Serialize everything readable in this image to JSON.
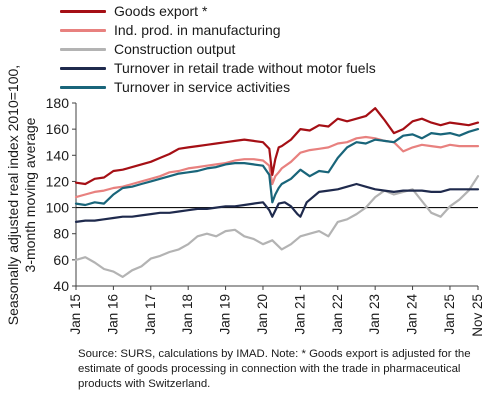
{
  "chart_data": {
    "type": "line",
    "ylabel": "Seasonally adjusted real index 2010=100, 3-month moving average",
    "ylim": [
      40,
      180
    ],
    "yticks": [
      40,
      60,
      80,
      100,
      120,
      140,
      160,
      180
    ],
    "xlim": [
      2015.0,
      2025.75
    ],
    "xtick_labels": [
      "Jan 15",
      "Jan 16",
      "Jan 17",
      "Jan 18",
      "Jan 19",
      "Jan 20",
      "Jan 21",
      "Jan 22",
      "Jan 23",
      "Jan 24",
      "Jan 25",
      "Nov 25"
    ],
    "reference_line": 100,
    "grid": false,
    "legend_position": "top",
    "series": [
      {
        "name": "Goods export *",
        "color": "#a50f15",
        "x": [
          2015.0,
          2015.25,
          2015.5,
          2015.75,
          2016.0,
          2016.25,
          2016.5,
          2016.75,
          2017.0,
          2017.25,
          2017.5,
          2017.75,
          2018.0,
          2018.25,
          2018.5,
          2018.75,
          2019.0,
          2019.25,
          2019.5,
          2019.75,
          2020.0,
          2020.17,
          2020.25,
          2020.33,
          2020.42,
          2020.5,
          2020.75,
          2021.0,
          2021.25,
          2021.5,
          2021.75,
          2022.0,
          2022.25,
          2022.5,
          2022.75,
          2023.0,
          2023.25,
          2023.5,
          2023.75,
          2024.0,
          2024.25,
          2024.5,
          2024.75,
          2025.0,
          2025.25,
          2025.5,
          2025.75
        ],
        "y": [
          119,
          118,
          122,
          123,
          128,
          129,
          131,
          133,
          135,
          138,
          141,
          145,
          146,
          147,
          148,
          149,
          150,
          151,
          152,
          151,
          150,
          145,
          125,
          137,
          146,
          147,
          152,
          160,
          159,
          163,
          162,
          168,
          166,
          168,
          170,
          176,
          167,
          157,
          160,
          166,
          168,
          165,
          163,
          165,
          164,
          163,
          165
        ]
      },
      {
        "name": "Ind. prod. in manufacturing",
        "color": "#e8817f",
        "x": [
          2015.0,
          2015.25,
          2015.5,
          2015.75,
          2016.0,
          2016.25,
          2016.5,
          2016.75,
          2017.0,
          2017.25,
          2017.5,
          2017.75,
          2018.0,
          2018.25,
          2018.5,
          2018.75,
          2019.0,
          2019.25,
          2019.5,
          2019.75,
          2020.0,
          2020.17,
          2020.25,
          2020.33,
          2020.42,
          2020.5,
          2020.75,
          2021.0,
          2021.25,
          2021.5,
          2021.75,
          2022.0,
          2022.25,
          2022.5,
          2022.75,
          2023.0,
          2023.25,
          2023.5,
          2023.75,
          2024.0,
          2024.25,
          2024.5,
          2024.75,
          2025.0,
          2025.25,
          2025.5,
          2025.75
        ],
        "y": [
          108,
          110,
          112,
          113,
          115,
          116,
          118,
          120,
          122,
          124,
          127,
          128,
          130,
          131,
          132,
          133,
          134,
          136,
          137,
          137,
          136,
          132,
          118,
          124,
          127,
          130,
          135,
          142,
          144,
          145,
          146,
          149,
          150,
          153,
          154,
          153,
          151,
          150,
          143,
          146,
          148,
          147,
          146,
          148,
          147,
          147,
          147
        ]
      },
      {
        "name": "Construction output",
        "color": "#b3b3b3",
        "x": [
          2015.0,
          2015.25,
          2015.5,
          2015.75,
          2016.0,
          2016.25,
          2016.5,
          2016.75,
          2017.0,
          2017.25,
          2017.5,
          2017.75,
          2018.0,
          2018.25,
          2018.5,
          2018.75,
          2019.0,
          2019.25,
          2019.5,
          2019.75,
          2020.0,
          2020.25,
          2020.5,
          2020.75,
          2021.0,
          2021.25,
          2021.5,
          2021.75,
          2022.0,
          2022.25,
          2022.5,
          2022.75,
          2023.0,
          2023.25,
          2023.5,
          2023.75,
          2024.0,
          2024.25,
          2024.5,
          2024.75,
          2025.0,
          2025.25,
          2025.5,
          2025.75
        ],
        "y": [
          60,
          62,
          58,
          53,
          51,
          47,
          52,
          55,
          61,
          63,
          66,
          68,
          72,
          78,
          80,
          78,
          82,
          83,
          78,
          76,
          72,
          75,
          68,
          72,
          78,
          80,
          82,
          78,
          89,
          91,
          95,
          100,
          108,
          113,
          110,
          112,
          114,
          105,
          96,
          93,
          101,
          106,
          113,
          124
        ]
      },
      {
        "name": "Turnover in retail trade without motor fuels",
        "color": "#1f2a4d",
        "x": [
          2015.0,
          2015.25,
          2015.5,
          2015.75,
          2016.0,
          2016.25,
          2016.5,
          2016.75,
          2017.0,
          2017.25,
          2017.5,
          2017.75,
          2018.0,
          2018.25,
          2018.5,
          2018.75,
          2019.0,
          2019.25,
          2019.5,
          2019.75,
          2020.0,
          2020.17,
          2020.25,
          2020.42,
          2020.58,
          2020.75,
          2020.92,
          2021.0,
          2021.17,
          2021.5,
          2021.75,
          2022.0,
          2022.25,
          2022.5,
          2022.75,
          2023.0,
          2023.25,
          2023.5,
          2023.75,
          2024.0,
          2024.25,
          2024.5,
          2024.75,
          2025.0,
          2025.25,
          2025.5,
          2025.75
        ],
        "y": [
          89,
          90,
          90,
          91,
          92,
          93,
          93,
          94,
          95,
          96,
          96,
          97,
          98,
          99,
          99,
          100,
          101,
          101,
          102,
          103,
          104,
          98,
          93,
          103,
          104,
          101,
          95,
          93,
          104,
          112,
          113,
          114,
          116,
          118,
          116,
          114,
          113,
          112,
          113,
          113,
          113,
          112,
          112,
          114,
          114,
          114,
          114
        ]
      },
      {
        "name": "Turnover in service activities",
        "color": "#19657a",
        "x": [
          2015.0,
          2015.25,
          2015.5,
          2015.75,
          2016.0,
          2016.25,
          2016.5,
          2016.75,
          2017.0,
          2017.25,
          2017.5,
          2017.75,
          2018.0,
          2018.25,
          2018.5,
          2018.75,
          2019.0,
          2019.25,
          2019.5,
          2019.75,
          2020.0,
          2020.17,
          2020.25,
          2020.33,
          2020.42,
          2020.5,
          2020.75,
          2021.0,
          2021.25,
          2021.5,
          2021.75,
          2022.0,
          2022.25,
          2022.5,
          2022.75,
          2023.0,
          2023.25,
          2023.5,
          2023.75,
          2024.0,
          2024.25,
          2024.5,
          2024.75,
          2025.0,
          2025.25,
          2025.5,
          2025.75
        ],
        "y": [
          103,
          102,
          104,
          103,
          110,
          115,
          116,
          118,
          120,
          122,
          124,
          126,
          127,
          128,
          130,
          131,
          133,
          134,
          134,
          133,
          132,
          125,
          104,
          110,
          115,
          118,
          122,
          129,
          124,
          128,
          127,
          138,
          146,
          150,
          149,
          152,
          151,
          150,
          155,
          156,
          153,
          157,
          156,
          157,
          155,
          158,
          160
        ]
      }
    ]
  },
  "source_note": "Source: SURS, calculations by IMAD. Note: * Goods export is adjusted for the estimate of goods processing in connection with the trade in pharmaceutical products with Switzerland."
}
